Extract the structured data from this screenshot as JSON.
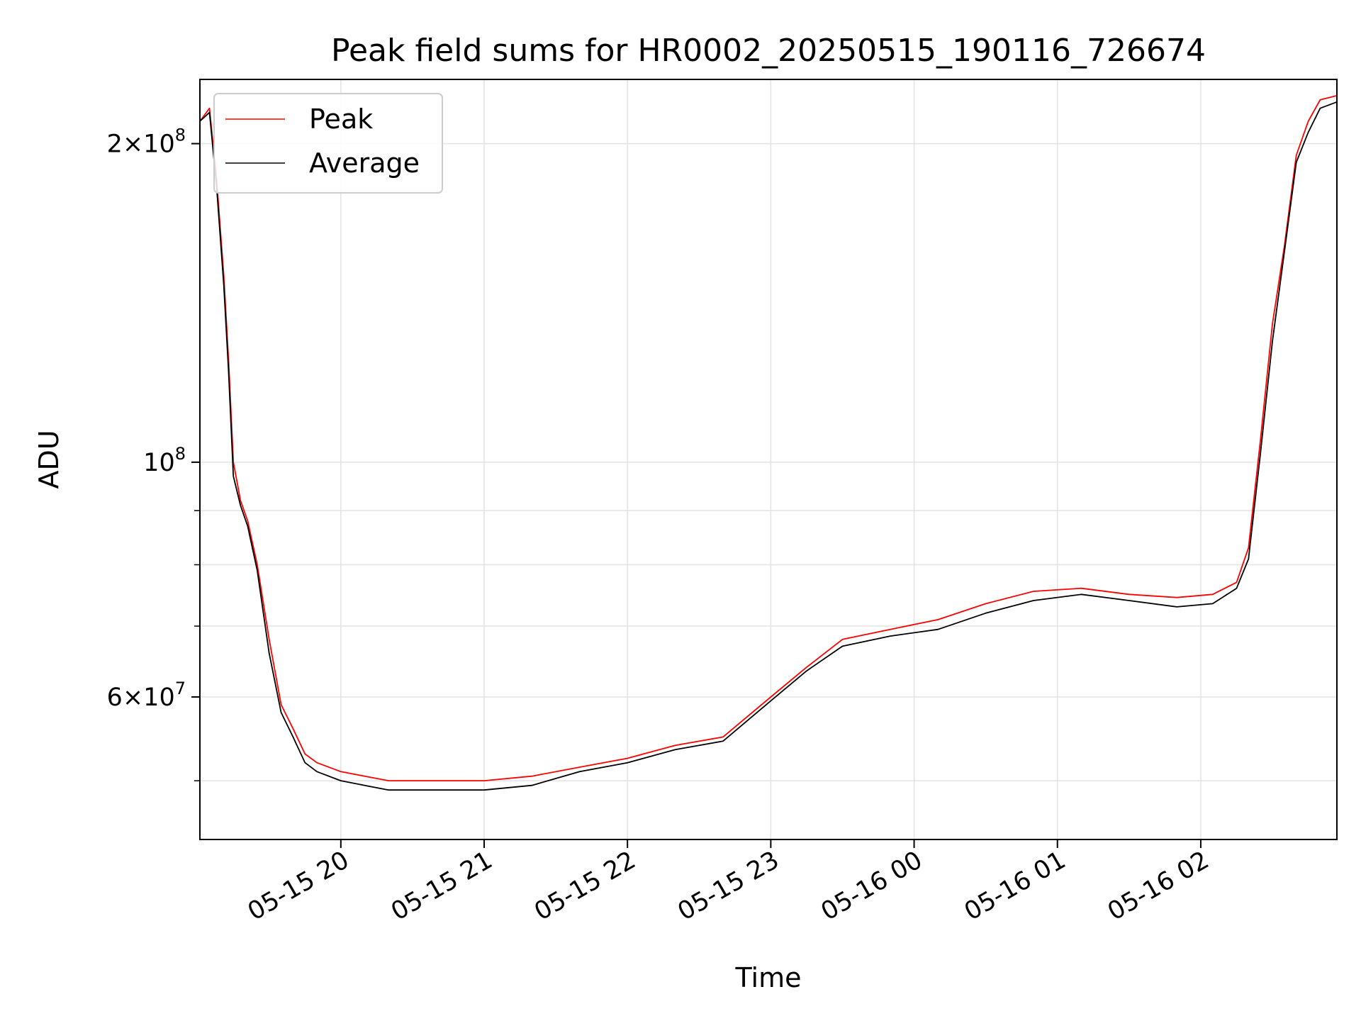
{
  "chart_data": {
    "type": "line",
    "title": "Peak field sums for HR0002_20250515_190116_726674",
    "xlabel": "Time",
    "ylabel": "ADU",
    "yscale": "log",
    "ylim": [
      44000000,
      230000000
    ],
    "xlim": [
      "2025-05-15 19:01",
      "2025-05-16 02:57"
    ],
    "grid": true,
    "legend_position": "top-left",
    "x_ticks": [
      {
        "value": "2025-05-15 20:00",
        "label": "05-15 20"
      },
      {
        "value": "2025-05-15 21:00",
        "label": "05-15 21"
      },
      {
        "value": "2025-05-15 22:00",
        "label": "05-15 22"
      },
      {
        "value": "2025-05-15 23:00",
        "label": "05-15 23"
      },
      {
        "value": "2025-05-16 00:00",
        "label": "05-16 00"
      },
      {
        "value": "2025-05-16 01:00",
        "label": "05-16 01"
      },
      {
        "value": "2025-05-16 02:00",
        "label": "05-16 02"
      }
    ],
    "y_ticks": [
      {
        "value": 60000000,
        "mantissa": "6",
        "exponent": "7"
      },
      {
        "value": 100000000,
        "mantissa": "",
        "exponent": "8"
      },
      {
        "value": 200000000,
        "mantissa": "2",
        "exponent": "8"
      }
    ],
    "y_minor_ticks": [
      50000000,
      70000000,
      80000000,
      90000000
    ],
    "x": [
      "2025-05-15 19:01",
      "2025-05-15 19:05",
      "2025-05-15 19:08",
      "2025-05-15 19:11",
      "2025-05-15 19:13",
      "2025-05-15 19:15",
      "2025-05-15 19:18",
      "2025-05-15 19:21",
      "2025-05-15 19:25",
      "2025-05-15 19:30",
      "2025-05-15 19:35",
      "2025-05-15 19:40",
      "2025-05-15 19:45",
      "2025-05-15 19:50",
      "2025-05-15 20:00",
      "2025-05-15 20:10",
      "2025-05-15 20:20",
      "2025-05-15 20:40",
      "2025-05-15 21:00",
      "2025-05-15 21:20",
      "2025-05-15 21:40",
      "2025-05-15 22:00",
      "2025-05-15 22:20",
      "2025-05-15 22:40",
      "2025-05-15 23:00",
      "2025-05-15 23:15",
      "2025-05-15 23:30",
      "2025-05-15 23:50",
      "2025-05-16 00:10",
      "2025-05-16 00:30",
      "2025-05-16 00:50",
      "2025-05-16 01:10",
      "2025-05-16 01:30",
      "2025-05-16 01:50",
      "2025-05-16 02:05",
      "2025-05-16 02:15",
      "2025-05-16 02:20",
      "2025-05-16 02:25",
      "2025-05-16 02:30",
      "2025-05-16 02:35",
      "2025-05-16 02:40",
      "2025-05-16 02:45",
      "2025-05-16 02:50",
      "2025-05-16 02:57"
    ],
    "series": [
      {
        "name": "Peak",
        "color": "#ff0000",
        "values": [
          210000000,
          216000000,
          185000000,
          150000000,
          125000000,
          100000000,
          92000000,
          88000000,
          80000000,
          68000000,
          59000000,
          56000000,
          53000000,
          52000000,
          51000000,
          50500000,
          50000000,
          50000000,
          50000000,
          50500000,
          51500000,
          52500000,
          54000000,
          55000000,
          60000000,
          64000000,
          68000000,
          69500000,
          71000000,
          73500000,
          75500000,
          76000000,
          75000000,
          74500000,
          75000000,
          77000000,
          83000000,
          105000000,
          135000000,
          160000000,
          195000000,
          210000000,
          220000000,
          222000000
        ]
      },
      {
        "name": "Average",
        "color": "#000000",
        "values": [
          210000000,
          214000000,
          182000000,
          147000000,
          122000000,
          97000000,
          91000000,
          87000000,
          79000000,
          66000000,
          58000000,
          55000000,
          52000000,
          51000000,
          50000000,
          49500000,
          49000000,
          49000000,
          49000000,
          49500000,
          51000000,
          52000000,
          53500000,
          54500000,
          59500000,
          63500000,
          67000000,
          68500000,
          69500000,
          72000000,
          74000000,
          75000000,
          74000000,
          73000000,
          73500000,
          76000000,
          81000000,
          102000000,
          130000000,
          158000000,
          192000000,
          205000000,
          216000000,
          219000000
        ]
      }
    ]
  }
}
